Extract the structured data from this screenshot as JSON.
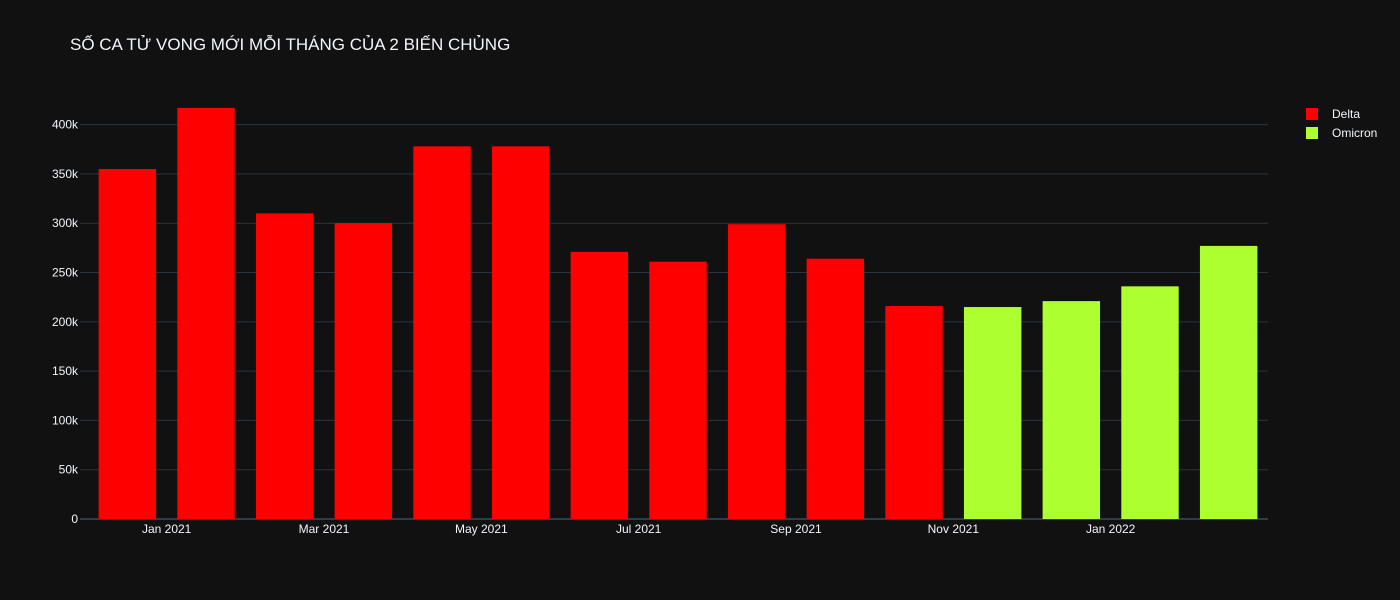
{
  "chart_data": {
    "type": "bar",
    "title": "SỐ CA TỬ VONG MỚI MỖI THÁNG CỦA 2 BIẾN CHỦNG",
    "xlabel": "",
    "ylabel": "",
    "x": [
      "2020-12",
      "2021-01",
      "2021-02",
      "2021-03",
      "2021-04",
      "2021-05",
      "2021-06",
      "2021-07",
      "2021-08",
      "2021-09",
      "2021-10",
      "2021-11",
      "2021-12",
      "2022-01",
      "2022-02"
    ],
    "x_tick_labels": [
      {
        "x": "2021-01",
        "label": "Jan 2021"
      },
      {
        "x": "2021-03",
        "label": "Mar 2021"
      },
      {
        "x": "2021-05",
        "label": "May 2021"
      },
      {
        "x": "2021-07",
        "label": "Jul 2021"
      },
      {
        "x": "2021-09",
        "label": "Sep 2021"
      },
      {
        "x": "2021-11",
        "label": "Nov 2021"
      },
      {
        "x": "2022-01",
        "label": "Jan 2022"
      }
    ],
    "y_ticks": [
      {
        "value": 0,
        "label": "0"
      },
      {
        "value": 50000,
        "label": "50k"
      },
      {
        "value": 100000,
        "label": "100k"
      },
      {
        "value": 150000,
        "label": "150k"
      },
      {
        "value": 200000,
        "label": "200k"
      },
      {
        "value": 250000,
        "label": "250k"
      },
      {
        "value": 300000,
        "label": "300k"
      },
      {
        "value": 350000,
        "label": "350k"
      },
      {
        "value": 400000,
        "label": "400k"
      }
    ],
    "ylim": [
      0,
      425000
    ],
    "grid": true,
    "legend_position": "top-right",
    "series": [
      {
        "name": "Delta",
        "color": "#ff0000",
        "x": [
          "2020-12",
          "2021-01",
          "2021-02",
          "2021-03",
          "2021-04",
          "2021-05",
          "2021-06",
          "2021-07",
          "2021-08",
          "2021-09",
          "2021-10"
        ],
        "values": [
          355000,
          417000,
          310000,
          300000,
          378000,
          378000,
          271000,
          261000,
          299000,
          264000,
          216000
        ]
      },
      {
        "name": "Omicron",
        "color": "#adff2f",
        "x": [
          "2021-11",
          "2021-12",
          "2022-01",
          "2022-02"
        ],
        "values": [
          215000,
          221000,
          236000,
          277000
        ]
      }
    ]
  }
}
